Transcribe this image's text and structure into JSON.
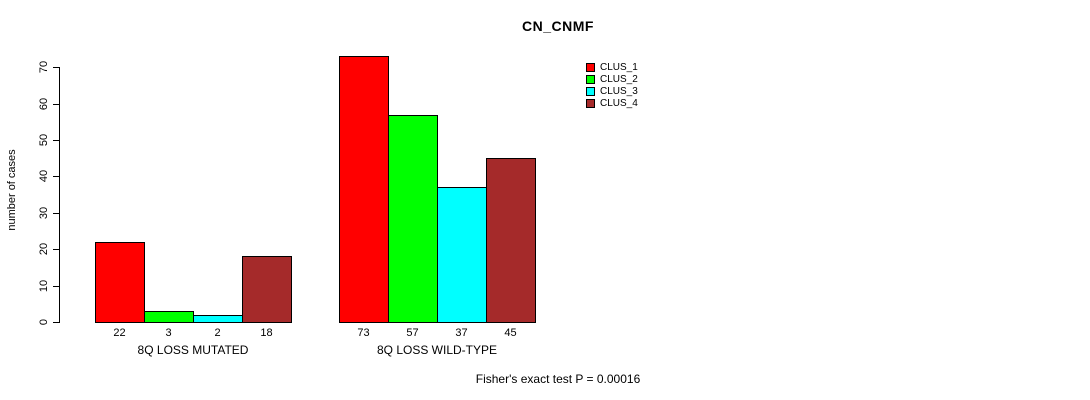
{
  "chart_data": {
    "type": "bar",
    "title": "CN_CNMF",
    "ylabel": "number of cases",
    "xlabel": "",
    "ylim": [
      0,
      70
    ],
    "yticks": [
      0,
      10,
      20,
      30,
      40,
      50,
      60,
      70
    ],
    "grid": false,
    "legend_position": "top-right",
    "categories": [
      "8Q LOSS MUTATED",
      "8Q LOSS WILD-TYPE"
    ],
    "series": [
      {
        "name": "CLUS_1",
        "color": "#ff0000",
        "values": [
          22,
          73
        ]
      },
      {
        "name": "CLUS_2",
        "color": "#00ff00",
        "values": [
          3,
          57
        ]
      },
      {
        "name": "CLUS_3",
        "color": "#00ffff",
        "values": [
          2,
          37
        ]
      },
      {
        "name": "CLUS_4",
        "color": "#a52a2a",
        "values": [
          18,
          45
        ]
      }
    ],
    "bar_value_labels": {
      "8Q LOSS MUTATED": [
        22,
        3,
        2,
        18
      ],
      "8Q LOSS WILD-TYPE": [
        73,
        57,
        37,
        45
      ]
    },
    "footnote": "Fisher's exact test P = 0.00016"
  }
}
